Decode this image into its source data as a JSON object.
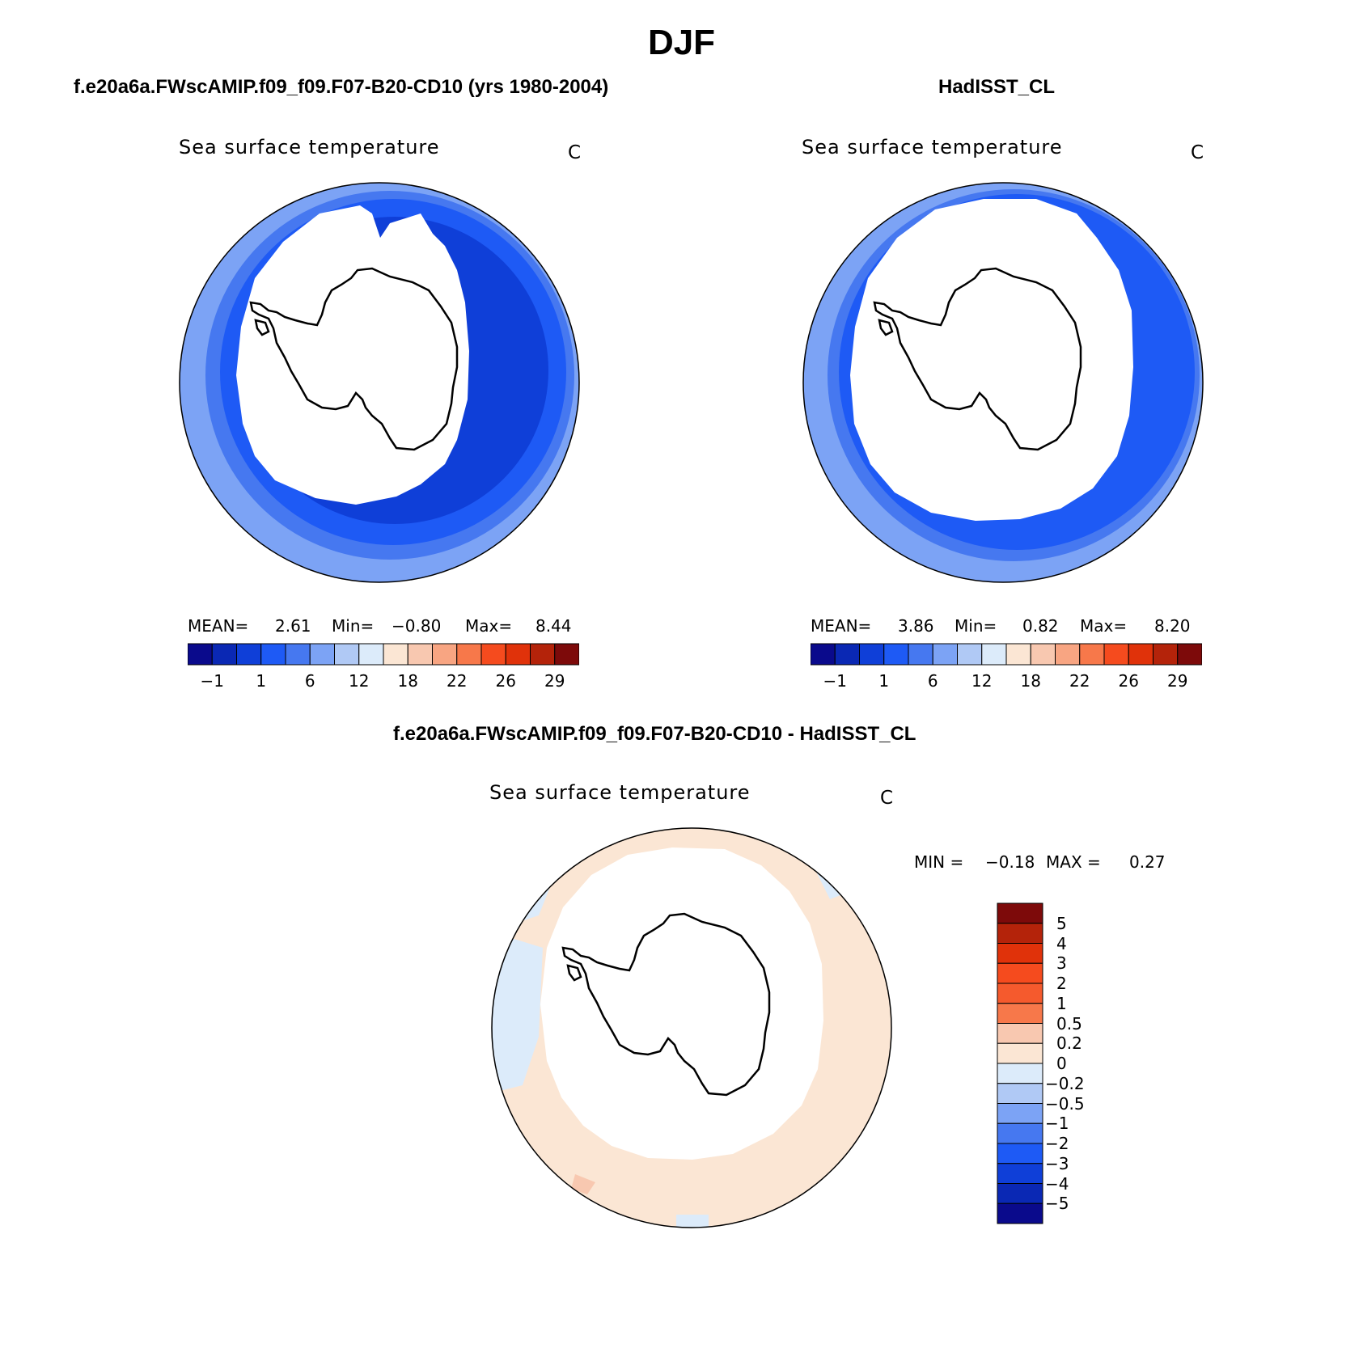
{
  "season": "DJF",
  "panels": [
    {
      "title": "f.e20a6a.FWscAMIP.f09_f09.F07-B20-CD10 (yrs 1980-2004)",
      "variable": "Sea surface temperature",
      "units": "C",
      "mean_label": "MEAN=",
      "mean": "2.61",
      "min_label": "Min=",
      "min": "−0.80",
      "max_label": "Max=",
      "max": "8.44"
    },
    {
      "title": "HadISST_CL",
      "variable": "Sea surface temperature",
      "units": "C",
      "mean_label": "MEAN=",
      "mean": "3.86",
      "min_label": "Min=",
      "min": "0.82",
      "max_label": "Max=",
      "max": "8.20"
    }
  ],
  "diff_panel": {
    "title": "f.e20a6a.FWscAMIP.f09_f09.F07-B20-CD10 - HadISST_CL",
    "variable": "Sea surface temperature",
    "units": "C",
    "min_label": "MIN =",
    "min": "−0.18",
    "max_label": "MAX =",
    "max": "0.27"
  },
  "sst_colorbar": {
    "colors": [
      "#0a0a8c",
      "#0a28b4",
      "#0f3fd8",
      "#1e5af5",
      "#4678f0",
      "#7ca3f5",
      "#b0c9f5",
      "#dcebfa",
      "#fbe6d4",
      "#f8c8b0",
      "#f8a582",
      "#f7784a",
      "#f54b1e",
      "#e0320a",
      "#b4230a",
      "#7d0a0a"
    ],
    "tick_labels": [
      "−1",
      "1",
      "6",
      "12",
      "18",
      "22",
      "26",
      "29"
    ]
  },
  "diff_colorbar": {
    "colors": [
      "#0a0a8c",
      "#0a28b4",
      "#0f3fd8",
      "#1e5af5",
      "#4678f0",
      "#7ca3f5",
      "#b0c9f5",
      "#dcebfa",
      "#fbe6d4",
      "#f8c8b0",
      "#f7784a",
      "#f55a2d",
      "#f54b1e",
      "#e0320a",
      "#b4230a",
      "#7d0a0a"
    ],
    "tick_labels": [
      "5",
      "4",
      "3",
      "2",
      "1",
      "0.5",
      "0.2",
      "0",
      "−0.2",
      "−0.5",
      "−1",
      "−2",
      "−3",
      "−4",
      "−5"
    ]
  },
  "map_colors": {
    "ocean_dark": "#0f3fd8",
    "ocean_mid": "#1e5af5",
    "ocean_light": "#4678f0",
    "ocean_pale": "#7ca3f5",
    "diff_warm": "#fbe6d4",
    "diff_cool": "#dcebfa",
    "diff_hot": "#f8c8b0"
  }
}
